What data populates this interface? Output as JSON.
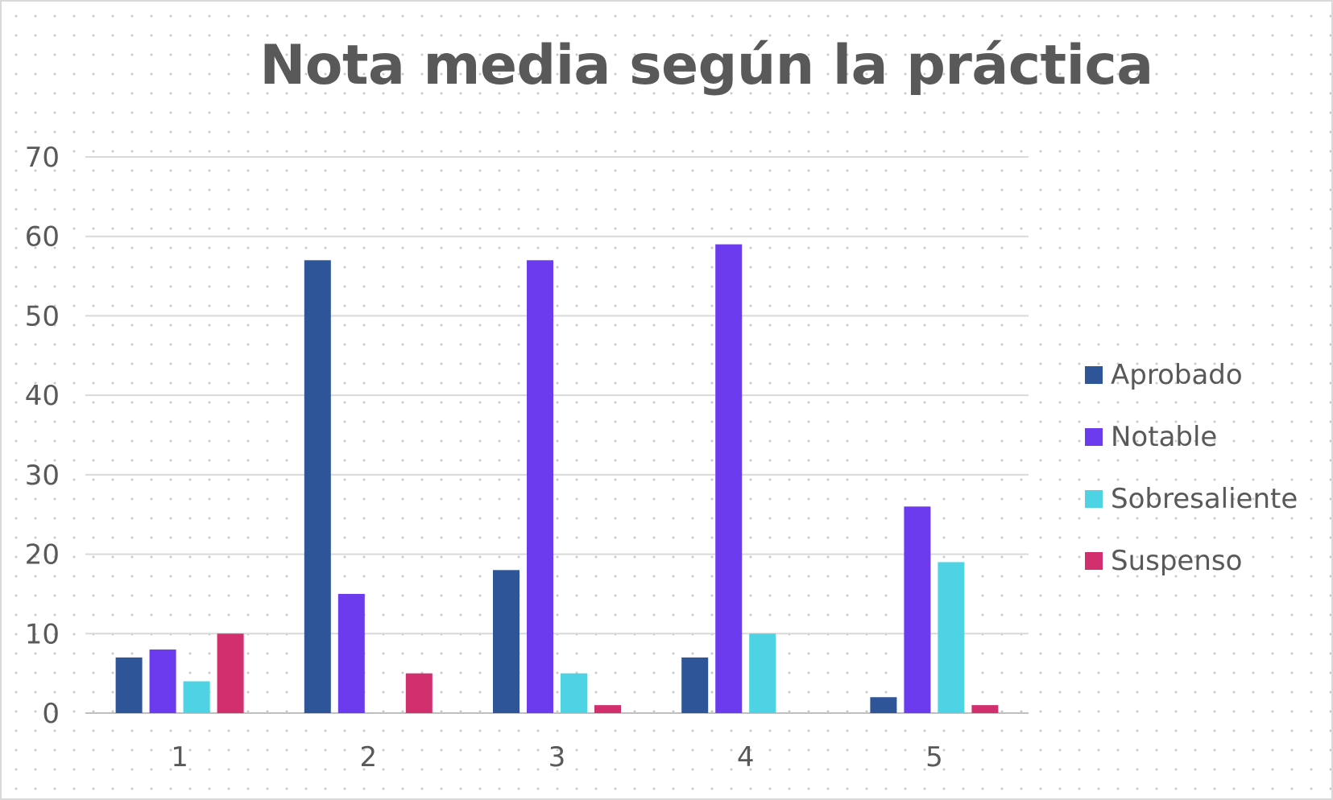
{
  "chart_data": {
    "type": "bar",
    "title": "Nota media según la práctica",
    "categories": [
      "1",
      "2",
      "3",
      "4",
      "5"
    ],
    "series": [
      {
        "name": "Aprobado",
        "color": "#2e5597",
        "values": [
          7,
          57,
          18,
          7,
          2
        ]
      },
      {
        "name": "Notable",
        "color": "#6c3bee",
        "values": [
          8,
          15,
          57,
          59,
          26
        ]
      },
      {
        "name": "Sobresaliente",
        "color": "#4dd3e3",
        "values": [
          4,
          0,
          5,
          10,
          19
        ]
      },
      {
        "name": "Suspenso",
        "color": "#d22f6f",
        "values": [
          10,
          5,
          1,
          0,
          1
        ]
      }
    ],
    "xlabel": "",
    "ylabel": "",
    "ylim": [
      0,
      70
    ],
    "yticks": [
      0,
      10,
      20,
      30,
      40,
      50,
      60,
      70
    ],
    "grid": true,
    "legend_position": "right"
  }
}
